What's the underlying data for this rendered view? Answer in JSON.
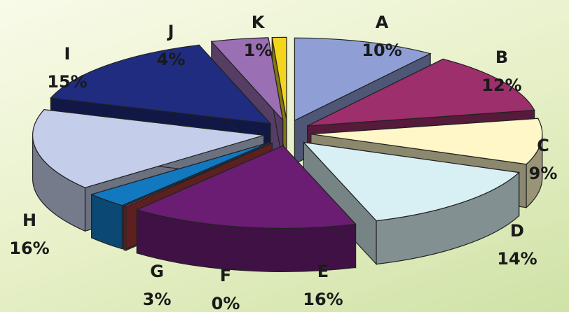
{
  "chart_data": {
    "type": "pie",
    "variant": "3d-exploded",
    "categories": [
      "A",
      "B",
      "C",
      "D",
      "E",
      "F",
      "G",
      "H",
      "I",
      "J",
      "K"
    ],
    "values": [
      10,
      12,
      9,
      14,
      16,
      0,
      3,
      16,
      15,
      4,
      1
    ],
    "value_labels": [
      "10%",
      "12%",
      "9%",
      "14%",
      "16%",
      "0%",
      "3%",
      "16%",
      "15%",
      "4%",
      "1%"
    ],
    "colors": [
      "#8f9fd6",
      "#9c2f6c",
      "#fff7c8",
      "#d8f0f4",
      "#6a1d72",
      "#a83a3a",
      "#1278c0",
      "#c4cde9",
      "#1f2c80",
      "#9b6fb4",
      "#f3d51c"
    ],
    "title": "",
    "legend": "none",
    "labels_position": "outside"
  }
}
